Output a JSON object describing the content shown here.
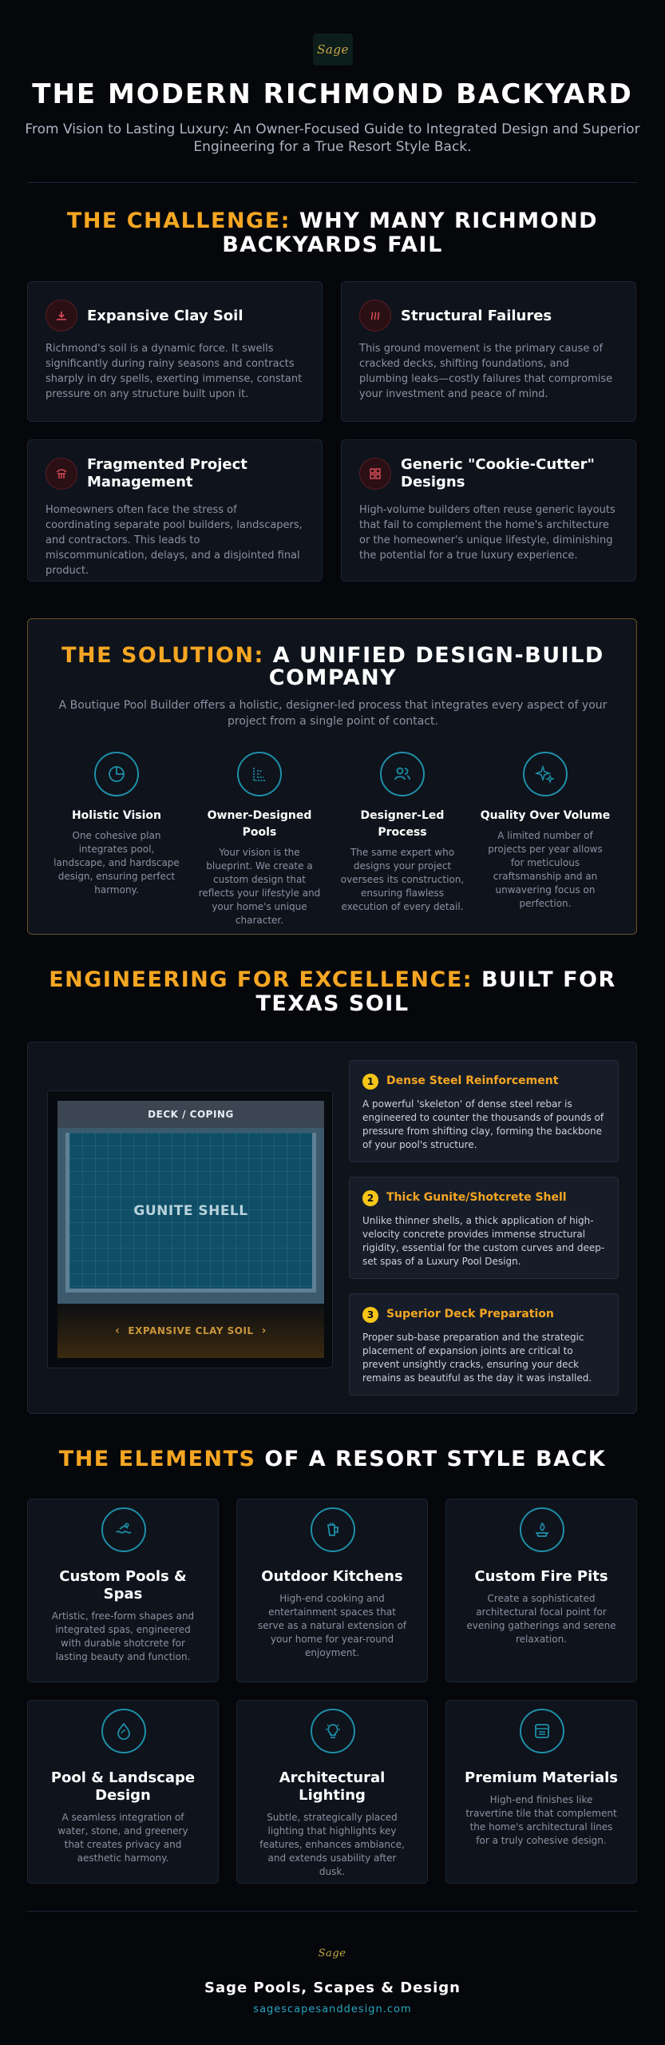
{
  "brand": {
    "logo_text": "Sage",
    "footer_name": "Sage Pools, Scapes & Design",
    "footer_url": "sagescapesanddesign.com"
  },
  "colors": {
    "accent": "#f5a623",
    "teal": "#1f8fa8",
    "danger_icon": "#d24a55",
    "background": "#05070b",
    "card": "#0e131c"
  },
  "header": {
    "title": "THE MODERN RICHMOND BACKYARD",
    "subtitle": "From Vision to Lasting Luxury: An Owner-Focused Guide to Integrated Design and Superior Engineering for a True Resort Style Back."
  },
  "challenge": {
    "heading_accent": "THE CHALLENGE:",
    "heading_rest": " WHY MANY RICHMOND BACKYARDS FAIL",
    "cards": [
      {
        "icon": "warning-house-icon",
        "title": "Expansive Clay Soil",
        "text": "Richmond's soil is a dynamic force. It swells significantly during rainy seasons and contracts sharply in dry spells, exerting immense, constant pressure on any structure built upon it."
      },
      {
        "icon": "heat-waves-icon",
        "title": "Structural Failures",
        "text": "This ground movement is the primary cause of cracked decks, shifting foundations, and plumbing leaks—costly failures that compromise your investment and peace of mind."
      },
      {
        "icon": "fragmented-people-icon",
        "title": "Fragmented Project Management",
        "text": "Homeowners often face the stress of coordinating separate pool builders, landscapers, and contractors. This leads to miscommunication, delays, and a disjointed final product."
      },
      {
        "icon": "grid-template-icon",
        "title": "Generic \"Cookie-Cutter\" Designs",
        "text": "High-volume builders often reuse generic layouts that fail to complement the home's architecture or the homeowner's unique lifestyle, diminishing the potential for a true luxury experience."
      }
    ]
  },
  "solution": {
    "heading_accent": "THE SOLUTION:",
    "heading_rest": " A UNIFIED DESIGN-BUILD COMPANY",
    "subtitle": "A Boutique Pool Builder offers a holistic, designer-led process that integrates every aspect of your project from a single point of contact.",
    "items": [
      {
        "icon": "pie-chart-icon",
        "title": "Holistic Vision",
        "text": "One cohesive plan integrates pool, landscape, and hardscape design, ensuring perfect harmony."
      },
      {
        "icon": "blueprint-icon",
        "title": "Owner-Designed Pools",
        "text": "Your vision is the blueprint. We create a custom design that reflects your lifestyle and your home's unique character."
      },
      {
        "icon": "people-icon",
        "title": "Designer-Led Process",
        "text": "The same expert who designs your project oversees its construction, ensuring flawless execution of every detail."
      },
      {
        "icon": "sparkles-icon",
        "title": "Quality Over Volume",
        "text": "A limited number of projects per year allows for meticulous craftsmanship and an unwavering focus on perfection."
      }
    ]
  },
  "engineering": {
    "heading_accent": "ENGINEERING FOR EXCELLENCE:",
    "heading_rest": " BUILT FOR TEXAS SOIL",
    "diagram": {
      "deck_label": "DECK / COPING",
      "shell_label": "GUNITE SHELL",
      "soil_label": "EXPANSIVE CLAY SOIL"
    },
    "steps": [
      {
        "number": "1",
        "title": "Dense Steel Reinforcement",
        "text": "A powerful 'skeleton' of dense steel rebar is engineered to counter the thousands of pounds of pressure from shifting clay, forming the backbone of your pool's structure."
      },
      {
        "number": "2",
        "title": "Thick Gunite/Shotcrete Shell",
        "text": "Unlike thinner shells, a thick application of high-velocity concrete provides immense structural rigidity, essential for the custom curves and deep-set spas of a Luxury Pool Design."
      },
      {
        "number": "3",
        "title": "Superior Deck Preparation",
        "text": "Proper sub-base preparation and the strategic placement of expansion joints are critical to prevent unsightly cracks, ensuring your deck remains as beautiful as the day it was installed."
      }
    ]
  },
  "elements": {
    "heading_accent": "THE ELEMENTS",
    "heading_rest": " OF A RESORT STYLE BACK",
    "cards": [
      {
        "icon": "pool-swim-icon",
        "title": "Custom Pools & Spas",
        "text": "Artistic, free-form shapes and integrated spas, engineered with durable shotcrete for lasting beauty and function."
      },
      {
        "icon": "kitchen-grill-icon",
        "title": "Outdoor Kitchens",
        "text": "High-end cooking and entertainment spaces that serve as a natural extension of your home for year-round enjoyment."
      },
      {
        "icon": "fire-pit-icon",
        "title": "Custom Fire Pits",
        "text": "Create a sophisticated architectural focal point for evening gatherings and serene relaxation."
      },
      {
        "icon": "water-drop-leaf-icon",
        "title": "Pool & Landscape Design",
        "text": "A seamless integration of water, stone, and greenery that creates privacy and aesthetic harmony."
      },
      {
        "icon": "lightbulb-icon",
        "title": "Architectural Lighting",
        "text": "Subtle, strategically placed lighting that highlights key features, enhances ambiance, and extends usability after dusk."
      },
      {
        "icon": "tile-material-icon",
        "title": "Premium Materials",
        "text": "High-end finishes like travertine tile that complement the home's architectural lines for a truly cohesive design."
      }
    ]
  }
}
